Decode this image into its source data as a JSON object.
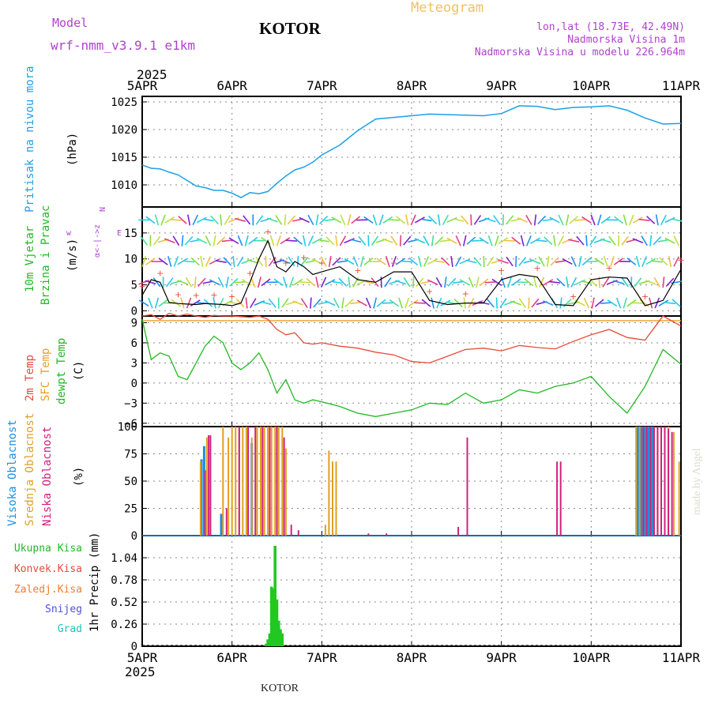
{
  "header": {
    "model_label": "Model",
    "model_name": "wrf-nmm_v3.9.1  e1km",
    "station": "KOTOR",
    "title": "Meteogram",
    "lonlat": "lon,lat (18.73E, 42.49N)",
    "altitude": "Nadmorska Visina 1m",
    "model_altitude": "Nadmorska Visina u modelu 226.964m",
    "year": "2025",
    "footer_station": "KOTOR",
    "watermark": "made by Angel"
  },
  "colors": {
    "pressure": "#1aa0e8",
    "temp2m": "#e84a3a",
    "sfc_temp": "#e8a020",
    "dewpoint": "#22b822",
    "wind_speed": "#000000",
    "gust": "#e84a3a",
    "precip_total": "#22c822",
    "high_cloud": "#1a90e0",
    "mid_cloud": "#e0a020",
    "low_cloud": "#d02080",
    "label_purple": "#b040d0",
    "title_orange": "#f0c060"
  },
  "chart_data": [
    {
      "type": "line",
      "panel": "pressure",
      "title": "",
      "ylabel_parts": [
        "Pritisak na nivou mora",
        "(hPa)"
      ],
      "x_categories": [
        "5APR",
        "6APR",
        "7APR",
        "8APR",
        "9APR",
        "10APR",
        "11APR"
      ],
      "ylim": [
        1006,
        1026
      ],
      "yticks": [
        1010,
        1015,
        1020,
        1025
      ],
      "grid": true,
      "series": [
        {
          "x": [
            0,
            0.1,
            0.2,
            0.3,
            0.4,
            0.5,
            0.6,
            0.7,
            0.8,
            0.9,
            1.0,
            1.1,
            1.2,
            1.3,
            1.4,
            1.5,
            1.6,
            1.7,
            1.8,
            1.9,
            2.0,
            2.2,
            2.4,
            2.6,
            2.8,
            3.0,
            3.2,
            3.4,
            3.6,
            3.8,
            4.0,
            4.2,
            4.4,
            4.6,
            4.8,
            5.0,
            5.2,
            5.4,
            5.6,
            5.8,
            6.0
          ],
          "y": [
            1013.6,
            1013.0,
            1012.9,
            1012.3,
            1011.8,
            1010.8,
            1009.8,
            1009.5,
            1009.0,
            1009.0,
            1008.5,
            1007.7,
            1008.6,
            1008.4,
            1008.8,
            1010.3,
            1011.6,
            1012.7,
            1013.2,
            1014.1,
            1015.4,
            1017.2,
            1019.8,
            1021.9,
            1022.2,
            1022.5,
            1022.8,
            1022.7,
            1022.6,
            1022.5,
            1022.9,
            1024.3,
            1024.2,
            1023.6,
            1024.0,
            1024.1,
            1024.3,
            1023.5,
            1022.1,
            1021.0,
            1021.1
          ]
        }
      ]
    },
    {
      "type": "line",
      "panel": "wind",
      "title": "",
      "ylabel_parts": [
        "10m Vjetar",
        "Brzina i Pravac",
        "(m/s)"
      ],
      "compass_labels": [
        "N",
        "w",
        "E",
        "α<-|->z"
      ],
      "x_categories": [
        "5APR",
        "6APR",
        "7APR",
        "8APR",
        "9APR",
        "10APR",
        "11APR"
      ],
      "ylim": [
        -1,
        20
      ],
      "yticks": [
        0,
        5,
        10,
        15
      ],
      "grid": true,
      "series": [
        {
          "name": "",
          "x": [
            0,
            0.1,
            0.2,
            0.3,
            0.4,
            0.5,
            0.6,
            0.7,
            0.8,
            0.9,
            1.0,
            1.1,
            1.2,
            1.3,
            1.4,
            1.5,
            1.6,
            1.7,
            1.8,
            1.9,
            2.0,
            2.2,
            2.4,
            2.6,
            2.8,
            3.0,
            3.2,
            3.4,
            3.6,
            3.8,
            4.0,
            4.2,
            4.4,
            4.6,
            4.8,
            5.0,
            5.2,
            5.4,
            5.6,
            5.8,
            6.0
          ],
          "y": [
            3,
            6,
            5.5,
            1.6,
            1.4,
            1.3,
            1.2,
            1.4,
            1.3,
            1.2,
            1.0,
            1.5,
            5.5,
            10,
            13.5,
            8.5,
            7.5,
            9.5,
            8.5,
            7,
            7.5,
            8.5,
            6,
            5.5,
            7.5,
            7.5,
            2,
            1.2,
            1.5,
            1.5,
            6,
            7,
            6.5,
            1.2,
            1.0,
            6,
            6.5,
            6.3,
            1.0,
            2.0,
            8
          ]
        }
      ]
    },
    {
      "type": "line",
      "panel": "temperature",
      "title": "",
      "ylabel_parts": [
        "2m Temp",
        "SFC Temp",
        "dewpt Temp",
        "(C)"
      ],
      "x_categories": [
        "5APR",
        "6APR",
        "7APR",
        "8APR",
        "9APR",
        "10APR",
        "11APR"
      ],
      "ylim": [
        -6.5,
        10
      ],
      "yticks": [
        -6,
        -3,
        0,
        3,
        6,
        9
      ],
      "grid": true,
      "series": [
        {
          "name": "2m Temp",
          "x": [
            0,
            0.1,
            0.2,
            0.3,
            0.4,
            0.5,
            0.6,
            0.7,
            0.8,
            0.9,
            1.0,
            1.1,
            1.2,
            1.3,
            1.4,
            1.5,
            1.6,
            1.7,
            1.8,
            1.9,
            2.0,
            2.2,
            2.4,
            2.6,
            2.8,
            3.0,
            3.2,
            3.4,
            3.6,
            3.8,
            4.0,
            4.2,
            4.4,
            4.6,
            4.8,
            5.0,
            5.2,
            5.4,
            5.6,
            5.8,
            6.0
          ],
          "y": [
            10,
            10.2,
            9.5,
            10.4,
            10.0,
            10.3,
            10.0,
            9.8,
            10.1,
            10.0,
            10.0,
            9.9,
            9.8,
            10.0,
            9.5,
            8.0,
            7.2,
            7.5,
            6.0,
            5.8,
            6.0,
            5.5,
            5.2,
            4.6,
            4.2,
            3.2,
            3.0,
            4.0,
            5.0,
            5.2,
            4.8,
            5.6,
            5.3,
            5.1,
            6.2,
            7.2,
            8.0,
            6.8,
            6.4,
            10.0,
            8.5
          ]
        },
        {
          "name": "SFC Temp",
          "x": [
            0,
            6.0
          ],
          "y": [
            9.3,
            9.3
          ]
        },
        {
          "name": "dewpt Temp",
          "x": [
            0,
            0.1,
            0.2,
            0.3,
            0.4,
            0.5,
            0.6,
            0.7,
            0.8,
            0.9,
            1.0,
            1.1,
            1.2,
            1.3,
            1.4,
            1.5,
            1.6,
            1.7,
            1.8,
            1.9,
            2.0,
            2.2,
            2.4,
            2.6,
            2.8,
            3.0,
            3.2,
            3.4,
            3.6,
            3.8,
            4.0,
            4.2,
            4.4,
            4.6,
            4.8,
            5.0,
            5.2,
            5.4,
            5.6,
            5.8,
            6.0
          ],
          "y": [
            9.5,
            3.5,
            4.5,
            4.0,
            1.0,
            0.5,
            3.0,
            5.5,
            7.0,
            6.0,
            3.0,
            2.0,
            3.0,
            4.5,
            2.0,
            -1.5,
            0.5,
            -2.5,
            -3.0,
            -2.5,
            -2.8,
            -3.5,
            -4.5,
            -5.0,
            -4.5,
            -4.0,
            -3.0,
            -3.2,
            -1.5,
            -3.0,
            -2.5,
            -1.0,
            -1.5,
            -0.5,
            0.0,
            1.0,
            -2.0,
            -4.5,
            -0.5,
            5.0,
            2.8
          ]
        }
      ]
    },
    {
      "type": "bar",
      "panel": "clouds",
      "title": "",
      "ylabel_parts": [
        "Visoka Oblacnost",
        "Srednja Oblacnost",
        "Niska Oblacnost",
        "(%)"
      ],
      "x_categories": [
        "5APR",
        "6APR",
        "7APR",
        "8APR",
        "9APR",
        "10APR",
        "11APR"
      ],
      "ylim": [
        0,
        100
      ],
      "yticks": [
        0,
        25,
        50,
        75,
        100
      ],
      "grid": true,
      "series": [
        {
          "name": "Visoka Oblacnost",
          "x": [
            0.66,
            0.69,
            0.88,
            1.22,
            5.52,
            5.56,
            5.6,
            5.64,
            5.68
          ],
          "values": [
            70,
            82,
            20,
            85,
            100,
            100,
            100,
            100,
            100
          ]
        },
        {
          "name": "Srednja Oblacnost",
          "x": [
            0.65,
            0.72,
            0.9,
            0.96,
            1.0,
            1.04,
            1.08,
            1.12,
            1.16,
            1.22,
            1.28,
            1.32,
            1.36,
            1.4,
            1.44,
            1.48,
            1.52,
            1.56,
            1.6,
            2.04,
            2.08,
            2.12,
            2.16,
            5.5,
            5.54,
            5.58,
            5.62,
            5.66,
            5.7,
            5.74,
            5.78,
            5.82,
            5.86,
            5.92,
            5.98
          ],
          "values": [
            68,
            90,
            100,
            90,
            100,
            100,
            100,
            100,
            100,
            90,
            100,
            100,
            100,
            100,
            100,
            100,
            100,
            100,
            80,
            10,
            78,
            68,
            68,
            100,
            100,
            100,
            100,
            100,
            100,
            100,
            100,
            100,
            100,
            95,
            68
          ]
        },
        {
          "name": "Niska Oblacnost",
          "x": [
            0.7,
            0.74,
            0.76,
            0.94,
            1.08,
            1.18,
            1.26,
            1.34,
            1.42,
            1.5,
            1.58,
            1.66,
            1.74,
            2.52,
            2.72,
            3.52,
            3.62,
            4.62,
            4.66,
            5.58,
            5.62,
            5.66,
            5.7,
            5.74,
            5.78,
            5.82,
            5.86,
            5.9
          ],
          "values": [
            60,
            92,
            92,
            25,
            100,
            100,
            100,
            100,
            100,
            100,
            90,
            10,
            5,
            2,
            2,
            8,
            90,
            68,
            68,
            100,
            100,
            100,
            100,
            100,
            100,
            100,
            98,
            95
          ]
        }
      ]
    },
    {
      "type": "bar",
      "panel": "precip",
      "title": "",
      "ylabel_parts": [
        "1hr Precip (mm)"
      ],
      "legend": [
        "Ukupna Kisa",
        "Konvek.Kisa",
        "Zaledj.Kisa",
        "Snijeg",
        "Grad"
      ],
      "x_categories": [
        "5APR",
        "6APR",
        "7APR",
        "8APR",
        "9APR",
        "10APR",
        "11APR"
      ],
      "ylim": [
        0,
        1.3
      ],
      "yticks": [
        0,
        0.26,
        0.52,
        0.78,
        1.04
      ],
      "grid": true,
      "series": [
        {
          "name": "Ukupna Kisa",
          "x": [
            1.38,
            1.4,
            1.42,
            1.44,
            1.46,
            1.48,
            1.5,
            1.52,
            1.54,
            1.56
          ],
          "values": [
            0.03,
            0.08,
            0.15,
            0.7,
            0.68,
            1.18,
            0.55,
            0.3,
            0.2,
            0.15
          ]
        }
      ]
    }
  ]
}
